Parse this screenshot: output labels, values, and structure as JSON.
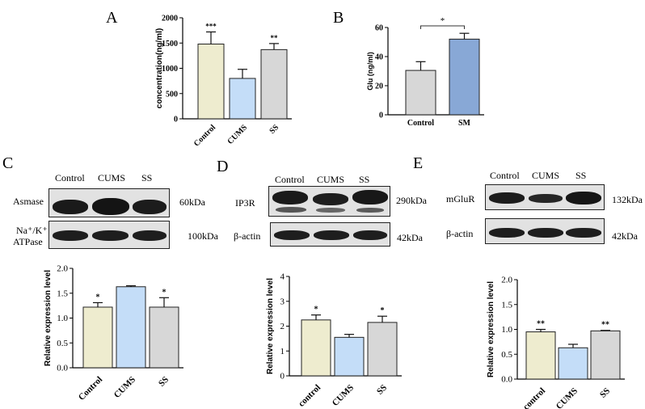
{
  "panels": {
    "A": {
      "letter": "A"
    },
    "B": {
      "letter": "B"
    },
    "C": {
      "letter": "C",
      "blot_header": [
        "Control",
        "CUMS",
        "SS"
      ],
      "blot_rows": [
        {
          "label_lines": [
            "Asmase"
          ],
          "kda": "60kDa"
        },
        {
          "label_lines": [
            "Na⁺/K⁺",
            "ATPase"
          ],
          "kda": "100kDa"
        }
      ]
    },
    "D": {
      "letter": "D",
      "blot_header": [
        "Control",
        "CUMS",
        "SS"
      ],
      "blot_rows": [
        {
          "label_lines": [
            "IP3R"
          ],
          "kda": "290kDa"
        },
        {
          "label_lines": [
            "β-actin"
          ],
          "kda": "42kDa"
        }
      ]
    },
    "E": {
      "letter": "E",
      "blot_header": [
        "Control",
        "CUMS",
        "SS"
      ],
      "blot_rows": [
        {
          "label_lines": [
            "mGluR"
          ],
          "kda": "132kDa"
        },
        {
          "label_lines": [
            "β-actin"
          ],
          "kda": "42kDa"
        }
      ]
    }
  },
  "chart_data": [
    {
      "id": "A",
      "type": "bar",
      "categories": [
        "Control",
        "CUMS",
        "SS"
      ],
      "values": [
        1480,
        800,
        1370
      ],
      "errors": [
        240,
        180,
        120
      ],
      "significance": [
        "***",
        "",
        "**"
      ],
      "colors": [
        "#eeeccf",
        "#c4ddf8",
        "#d7d7d7"
      ],
      "ylabel": "concentration(ng/ml)",
      "xlabel": "",
      "ylim": [
        0,
        2000
      ],
      "yticks": [
        0,
        500,
        1000,
        1500,
        2000
      ],
      "bracket": null
    },
    {
      "id": "B",
      "type": "bar",
      "categories": [
        "Control",
        "SM"
      ],
      "values": [
        30.5,
        52
      ],
      "errors": [
        6,
        4
      ],
      "significance": [
        "",
        ""
      ],
      "colors": [
        "#d7d7d7",
        "#88a8d6"
      ],
      "ylabel": "Glu (ng/ml)",
      "xlabel": "",
      "ylim": [
        0,
        60
      ],
      "yticks": [
        0,
        20,
        40,
        60
      ],
      "bracket": {
        "from": 0,
        "to": 1,
        "label": "*"
      }
    },
    {
      "id": "C",
      "type": "bar",
      "categories": [
        "Control",
        "CUMS",
        "SS"
      ],
      "values": [
        1.22,
        1.63,
        1.22
      ],
      "errors": [
        0.09,
        0.02,
        0.19
      ],
      "significance": [
        "*",
        "",
        "*"
      ],
      "colors": [
        "#eeeccf",
        "#c4ddf8",
        "#d7d7d7"
      ],
      "ylabel": "Relative expression level",
      "xlabel": "",
      "ylim": [
        0,
        2.0
      ],
      "yticks": [
        "0.0",
        "0.5",
        "1.0",
        "1.5",
        "2.0"
      ],
      "bracket": null
    },
    {
      "id": "D",
      "type": "bar",
      "categories": [
        "control",
        "CUMS",
        "SS"
      ],
      "values": [
        2.25,
        1.55,
        2.15
      ],
      "errors": [
        0.2,
        0.12,
        0.25
      ],
      "significance": [
        "*",
        "",
        "*"
      ],
      "colors": [
        "#eeeccf",
        "#c4ddf8",
        "#d7d7d7"
      ],
      "ylabel": "Relative expression level",
      "xlabel": "",
      "ylim": [
        0,
        4
      ],
      "yticks": [
        0,
        1,
        2,
        3,
        4
      ],
      "bracket": null
    },
    {
      "id": "E",
      "type": "bar",
      "categories": [
        "control",
        "CUMS",
        "SS"
      ],
      "values": [
        0.95,
        0.63,
        0.97
      ],
      "errors": [
        0.05,
        0.07,
        0.01
      ],
      "significance": [
        "**",
        "",
        "**"
      ],
      "colors": [
        "#eeeccf",
        "#c4ddf8",
        "#d7d7d7"
      ],
      "ylabel": "Relative expression level",
      "xlabel": "",
      "ylim": [
        0,
        2.0
      ],
      "yticks": [
        "0.0",
        "0.5",
        "1.0",
        "1.5",
        "2.0"
      ],
      "bracket": null
    }
  ]
}
